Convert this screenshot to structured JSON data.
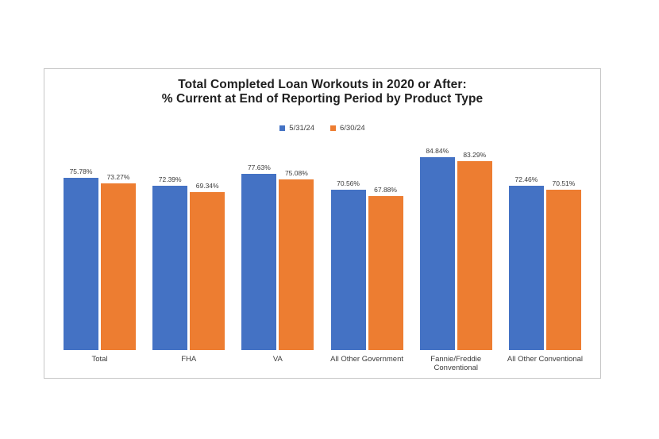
{
  "chart_data": {
    "type": "bar",
    "title_line1": "Total Completed Loan Workouts in 2020 or After:",
    "title_line2": "% Current at End of Reporting Period by Product Type",
    "categories": [
      "Total",
      "FHA",
      "VA",
      "All Other Government",
      "Fannie/Freddie Conventional",
      "All Other Conventional"
    ],
    "series": [
      {
        "name": "5/31/24",
        "color": "#4472C4",
        "values": [
          75.78,
          72.39,
          77.63,
          70.56,
          84.84,
          72.46
        ]
      },
      {
        "name": "6/30/24",
        "color": "#ED7D31",
        "values": [
          73.27,
          69.34,
          75.08,
          67.88,
          83.29,
          70.51
        ]
      }
    ],
    "value_suffix": "%",
    "data_labels": true,
    "ylim": [
      0,
      100
    ],
    "grid": false,
    "legend_position": "top-center",
    "colors": {
      "series1": "#4472C4",
      "series2": "#ED7D31",
      "frame_border": "#c6c6c6",
      "label_text": "#3b3b3b"
    }
  }
}
